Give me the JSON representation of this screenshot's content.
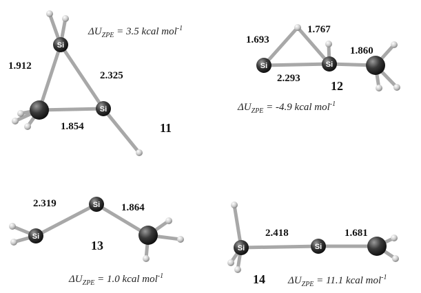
{
  "structures": [
    {
      "label": "11",
      "energy": {
        "symbol": "ΔU",
        "subscript": "ZPE",
        "text": " = 3.5 kcal mol",
        "superscript": "-1"
      },
      "bonds": [
        "1.912",
        "2.325",
        "1.854"
      ],
      "atoms": [
        "Si",
        "Si"
      ]
    },
    {
      "label": "12",
      "energy": {
        "symbol": "ΔU",
        "subscript": "ZPE",
        "text": " = -4.9 kcal mol",
        "superscript": "-1"
      },
      "bonds": [
        "1.693",
        "1.767",
        "1.860",
        "2.293"
      ],
      "atoms": [
        "Si",
        "Si"
      ]
    },
    {
      "label": "13",
      "energy": {
        "symbol": "ΔU",
        "subscript": "ZPE",
        "text": " = 1.0 kcal mol",
        "superscript": "-1"
      },
      "bonds": [
        "2.319",
        "1.864"
      ],
      "atoms": [
        "Si",
        "Si"
      ]
    },
    {
      "label": "14",
      "energy": {
        "symbol": "ΔU",
        "subscript": "ZPE",
        "text": " = 11.1 kcal mol",
        "superscript": "-1"
      },
      "bonds": [
        "2.418",
        "1.681"
      ],
      "atoms": [
        "Si",
        "Si"
      ]
    }
  ]
}
